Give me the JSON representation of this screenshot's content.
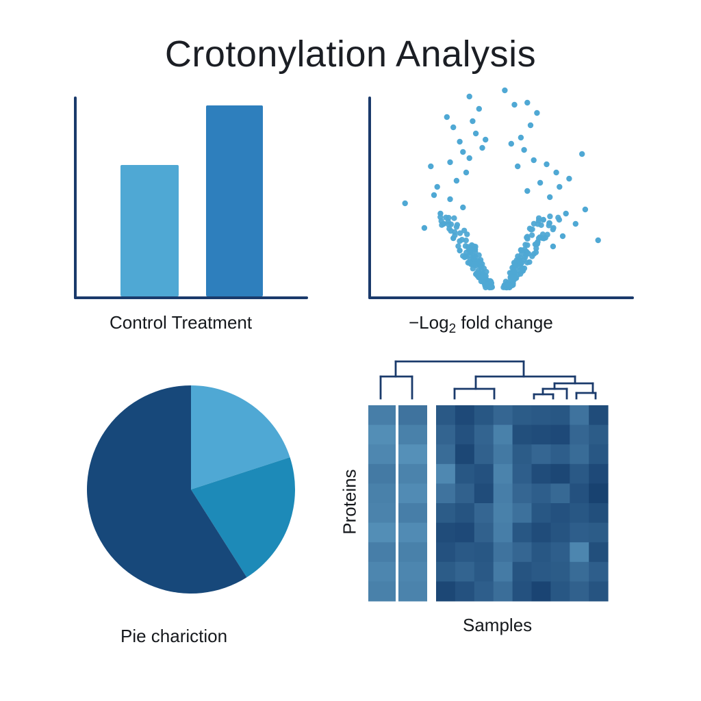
{
  "title": "Crotonylation Analysis",
  "colors": {
    "axis": "#1a3a6b",
    "light_blue": "#4fa8d4",
    "mid_blue": "#2e7fbd",
    "dark_blue": "#17487a",
    "teal_blue": "#1d8ab8",
    "dendrogram": "#1a3a6b"
  },
  "chart_data": [
    {
      "type": "bar",
      "categories": [
        "Control",
        "Treatment"
      ],
      "values": [
        64,
        93
      ],
      "ylim": [
        0,
        100
      ],
      "xlabel": "",
      "ylabel": "",
      "category_label_text": "Control  Treatment",
      "grid": false
    },
    {
      "type": "scatter",
      "description_of_axes": "volcano",
      "xlabel_prefix": "−Log",
      "xlabel_sub": "2",
      "xlabel_suffix": " fold change",
      "xlim": [
        -4,
        4
      ],
      "ylim": [
        0,
        10
      ],
      "points": [
        [
          -2.9,
          4.1
        ],
        [
          -2.1,
          5.9
        ],
        [
          -1.9,
          4.9
        ],
        [
          -1.6,
          8.3
        ],
        [
          -1.5,
          6.1
        ],
        [
          -1.4,
          7.8
        ],
        [
          -1.2,
          7.1
        ],
        [
          -1.1,
          6.6
        ],
        [
          -1.3,
          5.2
        ],
        [
          -0.9,
          9.3
        ],
        [
          -0.8,
          8.1
        ],
        [
          -0.7,
          7.5
        ],
        [
          -0.6,
          8.7
        ],
        [
          -0.5,
          6.8
        ],
        [
          -0.4,
          7.2
        ],
        [
          -0.9,
          6.3
        ],
        [
          -1.0,
          5.6
        ],
        [
          -1.8,
          3.6
        ],
        [
          -2.3,
          2.9
        ],
        [
          -1.7,
          3.1
        ],
        [
          -1.4,
          2.4
        ],
        [
          -1.2,
          1.8
        ],
        [
          -1.5,
          4.3
        ],
        [
          -2.0,
          4.5
        ],
        [
          -1.1,
          3.9
        ],
        [
          0.2,
          9.6
        ],
        [
          0.5,
          8.9
        ],
        [
          0.9,
          9.0
        ],
        [
          1.2,
          8.5
        ],
        [
          0.4,
          7.0
        ],
        [
          0.7,
          7.3
        ],
        [
          0.8,
          6.7
        ],
        [
          1.1,
          6.2
        ],
        [
          1.5,
          6.0
        ],
        [
          1.8,
          5.6
        ],
        [
          2.6,
          6.5
        ],
        [
          2.2,
          5.3
        ],
        [
          1.9,
          4.9
        ],
        [
          1.6,
          4.4
        ],
        [
          2.1,
          3.6
        ],
        [
          2.4,
          3.1
        ],
        [
          3.1,
          2.3
        ],
        [
          2.7,
          3.8
        ],
        [
          1.4,
          3.3
        ],
        [
          1.0,
          7.9
        ],
        [
          0.6,
          5.9
        ],
        [
          1.3,
          5.1
        ],
        [
          2.0,
          2.5
        ],
        [
          1.7,
          2.0
        ],
        [
          0.9,
          4.7
        ]
      ],
      "cluster_points": 240,
      "grid": false
    },
    {
      "type": "pie",
      "slices": [
        {
          "value": 20,
          "color_key": "light_blue"
        },
        {
          "value": 21,
          "color_key": "teal_blue"
        },
        {
          "value": 59,
          "color_key": "dark_blue"
        }
      ],
      "caption": "Pie chariction"
    },
    {
      "type": "heatmap",
      "ylabel": "Proteins",
      "xlabel": "Samples",
      "left_block": [
        [
          0.52,
          0.6
        ],
        [
          0.4,
          0.5
        ],
        [
          0.45,
          0.38
        ],
        [
          0.55,
          0.48
        ],
        [
          0.5,
          0.42
        ],
        [
          0.48,
          0.52
        ],
        [
          0.4,
          0.42
        ],
        [
          0.52,
          0.5
        ],
        [
          0.46,
          0.46
        ],
        [
          0.5,
          0.48
        ]
      ],
      "right_block": [
        [
          0.8,
          0.92,
          0.82,
          0.7,
          0.78,
          0.8,
          0.82,
          0.6,
          0.9
        ],
        [
          0.72,
          0.86,
          0.72,
          0.5,
          0.88,
          0.9,
          0.92,
          0.7,
          0.78
        ],
        [
          0.66,
          0.94,
          0.74,
          0.56,
          0.78,
          0.7,
          0.76,
          0.66,
          0.82
        ],
        [
          0.44,
          0.82,
          0.86,
          0.48,
          0.76,
          0.9,
          0.94,
          0.8,
          0.92
        ],
        [
          0.6,
          0.74,
          0.9,
          0.52,
          0.7,
          0.76,
          0.68,
          0.86,
          0.98
        ],
        [
          0.78,
          0.84,
          0.7,
          0.5,
          0.62,
          0.82,
          0.86,
          0.82,
          0.88
        ],
        [
          0.9,
          0.92,
          0.74,
          0.52,
          0.82,
          0.9,
          0.84,
          0.76,
          0.78
        ],
        [
          0.86,
          0.8,
          0.82,
          0.6,
          0.7,
          0.82,
          0.76,
          0.46,
          0.88
        ],
        [
          0.78,
          0.72,
          0.8,
          0.54,
          0.84,
          0.8,
          0.78,
          0.66,
          0.76
        ],
        [
          0.94,
          0.86,
          0.76,
          0.64,
          0.86,
          0.96,
          0.82,
          0.74,
          0.84
        ]
      ]
    }
  ]
}
